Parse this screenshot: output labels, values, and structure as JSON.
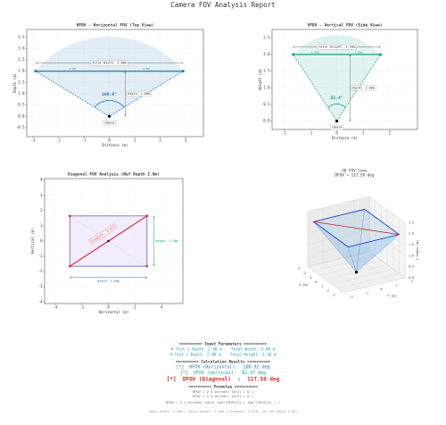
{
  "title": "Camera FOV Analysis Report",
  "chart_data": [
    {
      "type": "line",
      "title": "HFOV - Horizontal FOV (Top View)",
      "x_label": "Distance (m)",
      "y_label": "Depth (m)",
      "xlim": [
        -3.25,
        3.7
      ],
      "ylim": [
        -0.9,
        3.85
      ],
      "xticks": [
        -3,
        -2,
        -1,
        0,
        1,
        2,
        3
      ],
      "yticks": [
        -0.5,
        {
          "value": 0,
          "label": "0.0"
        },
        0.5,
        {
          "value": 1,
          "label": "1.0"
        },
        1.5,
        {
          "value": 2,
          "label": "2.0"
        },
        2.5,
        {
          "value": 3,
          "label": "3.0"
        },
        3.5
      ],
      "grid": true,
      "color": "#1f77b4",
      "edges": {
        "x": [
          -2.9,
          0,
          2.9
        ],
        "y": [
          2,
          0,
          2
        ]
      },
      "span": {
        "x": [
          -2.9,
          2.9
        ],
        "y": [
          2,
          2
        ]
      },
      "depth": 2,
      "camera": {
        "x": 0,
        "y": 0
      },
      "labels": {
        "span": "Total Width: 5.80m",
        "halves": [
          "2.9m",
          "2.9m"
        ],
        "angle": "106.9°",
        "depth": "Depth: 2.00m",
        "camera": "Camera"
      }
    },
    {
      "type": "line",
      "title": "VFOV - Vertical FOV (Side View)",
      "x_label": "Distance (m)",
      "y_label": "Height (m)",
      "xlim": [
        -2.45,
        3.05
      ],
      "ylim": [
        -0.25,
        2.75
      ],
      "xticks": [
        -2,
        -1,
        0,
        1,
        2
      ],
      "yticks": [
        {
          "value": 0,
          "label": "0.0"
        },
        0.5,
        {
          "value": 1,
          "label": "1.0"
        },
        1.5,
        {
          "value": 2,
          "label": "2.0"
        },
        2.5
      ],
      "grid": true,
      "color": "#16a085",
      "edges": {
        "x": [
          -1.65,
          0,
          1.65
        ],
        "y": [
          2,
          0,
          2
        ]
      },
      "span": {
        "x": [
          -1.65,
          1.65
        ],
        "y": [
          2,
          2
        ]
      },
      "depth": 2,
      "camera": {
        "x": 0,
        "y": 0
      },
      "labels": {
        "span": "Total Height: 3.30m",
        "halves": [
          "1.65m",
          "1.65m"
        ],
        "angle": "82.4°",
        "depth": "Depth: 2.00m",
        "camera": "Camera"
      }
    },
    {
      "type": "line",
      "title": "Diagonal FOV Analysis (Ref Depth 2.0m)",
      "x_label": "Horizontal (m)",
      "y_label": "Vertical (m)",
      "xlim": [
        -4.8,
        5.6
      ],
      "ylim": [
        -4.1,
        4.1
      ],
      "xticks": [
        -4,
        -2,
        0,
        2,
        4
      ],
      "yticks": [
        -4,
        -3,
        -2,
        -1,
        0,
        1,
        2,
        3,
        4
      ],
      "grid": true,
      "color": "#6a5acd",
      "rect": {
        "x": [
          -2.9,
          2.9
        ],
        "y": [
          -1.65,
          1.65
        ]
      },
      "diagonal": {
        "x": [
          -2.9,
          2.9
        ],
        "y": [
          -1.65,
          1.65
        ]
      },
      "center": {
        "x": 0,
        "y": 0
      },
      "labels": {
        "diagonal": "Diagonal: 6.67m",
        "width": "Width: 5.80m",
        "height": "Height: 3.30m"
      }
    },
    {
      "type": "mesh3d",
      "title": "3D FOV Cone",
      "subtitle": "DFOV = 117.59 deg",
      "x_label": "X (m)",
      "y_label": "Y (m)",
      "z_label": "Z Depth (m)",
      "xlim": [
        -3,
        3
      ],
      "ylim": [
        -2,
        2
      ],
      "zlim": [
        0,
        2.5
      ],
      "xticks": [
        -3,
        -2,
        -1,
        0,
        1,
        2,
        3
      ],
      "yticks": [
        -2,
        -1,
        0,
        1,
        2
      ],
      "zticks": [
        {
          "value": 0,
          "label": "0.0"
        },
        0.5,
        {
          "value": 1,
          "label": "1.0"
        },
        1.5,
        {
          "value": 2,
          "label": "2.0"
        },
        2.5
      ],
      "color": "#1f3fd8",
      "corners": {
        "x": [
          -2.9,
          2.9,
          2.9,
          -2.9
        ],
        "y": [
          -1.65,
          -1.65,
          1.65,
          1.65
        ],
        "z": [
          2,
          2,
          2,
          2
        ]
      },
      "apex": {
        "x": 0,
        "y": 0,
        "z": 0
      }
    }
  ],
  "summary": {
    "input_title": "========== Input Parameters ==========",
    "inputs": [
      "H-Test | Depth: 2.00 m    Total Width: 5.80 m",
      "V-Test | Depth: 2.00 m    Total Height: 3.30 m"
    ],
    "results_title": "========== Calculation Results ==========",
    "results": [
      "[*]  HFOV (Horizontal):  106.92 deg",
      "[*]  VFOV (Vertical):  82.37 deg",
      "[*]  DFOV (Diagonal)  :  117.59 deg"
    ],
    "formulas_title": "========== Formulas ==========",
    "formulas": [
      "HFOV = 2 x arctan( (W/2) / D )",
      "VFOV = 2 x arctan( (H/2) / D )",
      "DFOV = 2 x arctan( sqrt( tan²(HFOV/2) + tan²(VFOV/2) ) )"
    ],
    "footer": "Equiv Width: 5.80m | Equiv Height: 3.30m | Diagonal: 6.67m  (at ref depth 2.0m)"
  }
}
